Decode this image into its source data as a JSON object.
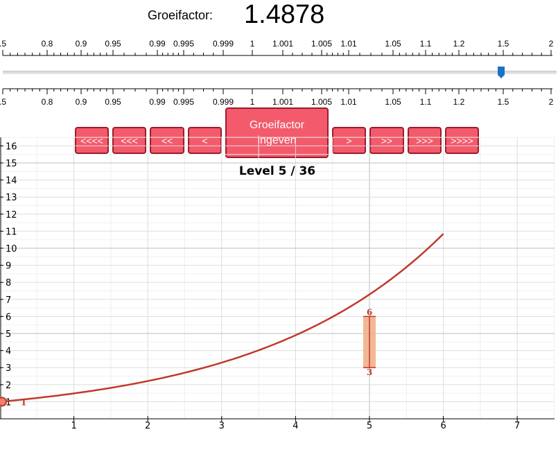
{
  "header": {
    "factor_label": "Groeifactor:",
    "factor_value": "1.4878"
  },
  "scale": {
    "ticks": [
      {
        "value": 0.5,
        "label": ".5"
      },
      {
        "value": 0.8,
        "label": "0.8"
      },
      {
        "value": 0.9,
        "label": "0.9"
      },
      {
        "value": 0.95,
        "label": "0.95"
      },
      {
        "value": 0.99,
        "label": "0.99"
      },
      {
        "value": 0.995,
        "label": "0.995"
      },
      {
        "value": 0.999,
        "label": "0.999"
      },
      {
        "value": 1,
        "label": "1"
      },
      {
        "value": 1.001,
        "label": "1.001"
      },
      {
        "value": 1.005,
        "label": "1.005"
      },
      {
        "value": 1.01,
        "label": "1.01"
      },
      {
        "value": 1.05,
        "label": "1.05"
      },
      {
        "value": 1.1,
        "label": "1.1"
      },
      {
        "value": 1.2,
        "label": "1.2"
      },
      {
        "value": 1.5,
        "label": "1.5"
      },
      {
        "value": 2,
        "label": "2"
      }
    ]
  },
  "slider": {
    "value": 1.4878
  },
  "buttons": {
    "back4": "<<<<",
    "back3": "<<<",
    "back2": "<<",
    "back1": "<",
    "enter_line1": "Groeifactor",
    "enter_line2": "ingeven",
    "fwd1": ">",
    "fwd2": ">>",
    "fwd3": ">>>",
    "fwd4": ">>>>"
  },
  "level": {
    "title": "Level 5 / 36"
  },
  "colors": {
    "button_fill": "#f35a6c",
    "button_border": "#9b1c2c",
    "curve": "#c0392b",
    "target_fill": "#efb08a",
    "slider_thumb": "#1a73c9"
  },
  "chart_data": {
    "type": "line",
    "x_ticks": [
      1,
      2,
      3,
      4,
      5,
      6,
      7
    ],
    "y_ticks": [
      1,
      2,
      3,
      4,
      5,
      6,
      7,
      8,
      9,
      10,
      11,
      12,
      13,
      14,
      15,
      16
    ],
    "xlim": [
      0,
      7.5
    ],
    "ylim": [
      0,
      16.5
    ],
    "series": [
      {
        "start_x": 0,
        "start_y": 1,
        "end_x": 6,
        "growth_factor": 1.4878
      }
    ],
    "start_point": {
      "x": 0,
      "y": 1,
      "label": "1"
    },
    "target": {
      "x": 5,
      "y_min": 3,
      "y_max": 6,
      "label_low": "3",
      "label_high": "6"
    },
    "grid": true
  }
}
